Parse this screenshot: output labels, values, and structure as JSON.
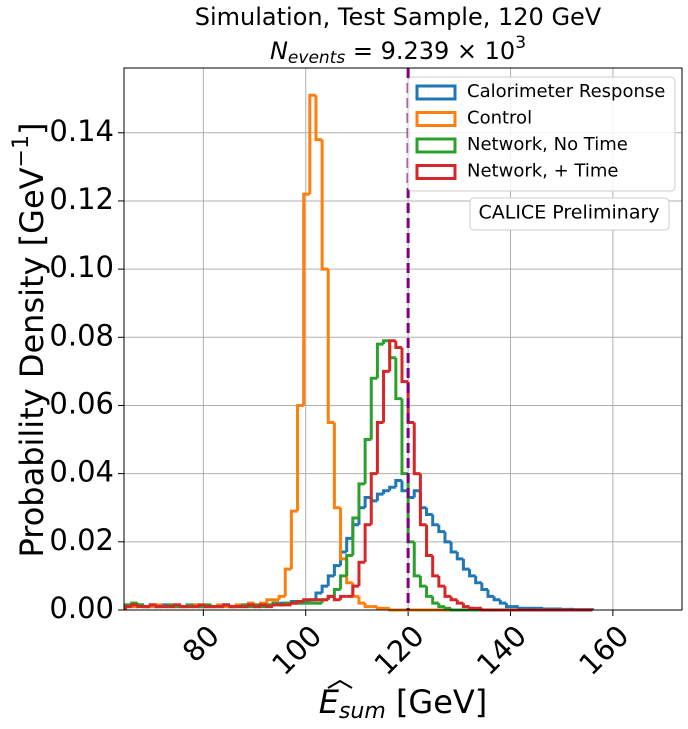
{
  "chart_data": {
    "type": "histogram",
    "title": "Simulation, Test Sample, 120 GeV",
    "subtitle": {
      "symbol": "N",
      "subscript": "events",
      "text": " = 9.239 × 10",
      "superscript": "3"
    },
    "x_label": {
      "symbol": "E",
      "subscript": "sum",
      "text": " [GeV]"
    },
    "y_label": {
      "text": "Probability Density [GeV",
      "superscript": "−1",
      "end": "]"
    },
    "annotation": "CALICE Preliminary",
    "xlim": [
      64.5,
      173.5
    ],
    "ylim": [
      0,
      0.159
    ],
    "xticks": [
      80,
      100,
      120,
      140,
      160
    ],
    "yticks": [
      {
        "value": 0,
        "label": "0.00"
      },
      0.02,
      0.04,
      0.06,
      0.08,
      {
        "value": 0.1,
        "label": "0.10"
      },
      0.12,
      0.14
    ],
    "grid": true,
    "legend": "upper right",
    "vline": {
      "x": 120,
      "color": "#800080"
    },
    "bins": [
      64.8,
      66,
      67.2,
      68.4,
      69.6,
      70.8,
      72,
      73.2,
      74.4,
      75.6,
      76.8,
      78,
      79.2,
      80.4,
      81.6,
      82.8,
      84,
      85.2,
      86.4,
      87.6,
      88.8,
      90,
      91.2,
      92.4,
      93.6,
      94.8,
      96,
      97.2,
      98.4,
      99.6,
      100.8,
      102,
      103.2,
      104.4,
      105.6,
      106.8,
      108,
      109.2,
      110.4,
      111.6,
      112.8,
      114,
      115.2,
      116.4,
      117.6,
      118.8,
      120,
      121.2,
      122.4,
      123.6,
      124.8,
      126,
      127.2,
      128.4,
      129.6,
      130.8,
      132,
      133.2,
      134.4,
      135.6,
      136.8,
      138,
      139.2,
      140.4,
      141.6,
      142.8,
      144,
      145.2,
      146.4,
      147.6,
      148.8,
      150,
      151.2,
      152.4,
      153.6,
      154.8,
      156
    ],
    "series": [
      {
        "name": "Calorimeter Response",
        "color": "#1f77b4",
        "values": [
          0.001,
          0.001,
          0.0015,
          0.001,
          0.001,
          0.001,
          0.0015,
          0.001,
          0.001,
          0.001,
          0.001,
          0.0015,
          0.001,
          0.001,
          0.001,
          0.001,
          0.0015,
          0.001,
          0.001,
          0.001,
          0.0015,
          0.001,
          0.0015,
          0.0015,
          0.002,
          0.002,
          0.002,
          0.0025,
          0.002,
          0.0025,
          0.003,
          0.005,
          0.007,
          0.01,
          0.013,
          0.017,
          0.021,
          0.025,
          0.03,
          0.033,
          0.032,
          0.034,
          0.035,
          0.036,
          0.038,
          0.035,
          0.033,
          0.035,
          0.03,
          0.028,
          0.025,
          0.023,
          0.02,
          0.017,
          0.015,
          0.012,
          0.01,
          0.008,
          0.006,
          0.004,
          0.003,
          0.002,
          0.001,
          0.001,
          0.0005,
          0.0005,
          0.0005,
          0.0005,
          0.0003,
          0.0003,
          0.0003,
          0.0002,
          0.0002,
          0.0001,
          0.0001,
          0.0001
        ]
      },
      {
        "name": "Control",
        "color": "#ff7f0e",
        "values": [
          0.0015,
          0.001,
          0.0015,
          0.001,
          0.001,
          0.0015,
          0.001,
          0.001,
          0.0015,
          0.001,
          0.001,
          0.0015,
          0.001,
          0.001,
          0.001,
          0.0015,
          0.001,
          0.001,
          0.0015,
          0.001,
          0.002,
          0.0015,
          0.002,
          0.003,
          0.003,
          0.004,
          0.012,
          0.029,
          0.06,
          0.122,
          0.151,
          0.138,
          0.1,
          0.055,
          0.03,
          0.015,
          0.008,
          0.004,
          0.002,
          0.001,
          0.001,
          0.0005,
          0.0005,
          0,
          0,
          0,
          0,
          0,
          0,
          0,
          0,
          0,
          0,
          0,
          0,
          0,
          0,
          0,
          0,
          0,
          0,
          0,
          0,
          0,
          0,
          0,
          0,
          0,
          0,
          0,
          0,
          0,
          0,
          0,
          0,
          0
        ]
      },
      {
        "name": "Network, No Time",
        "color": "#2ca02c",
        "values": [
          0.0015,
          0.002,
          0.0015,
          0.001,
          0.0015,
          0.001,
          0.001,
          0.0015,
          0.001,
          0.001,
          0.0015,
          0.001,
          0.001,
          0.0015,
          0.001,
          0.001,
          0.0015,
          0.001,
          0.001,
          0.0015,
          0.001,
          0.0015,
          0.001,
          0.0015,
          0.002,
          0.0015,
          0.002,
          0.002,
          0.002,
          0.002,
          0.002,
          0.002,
          0.003,
          0.004,
          0.006,
          0.01,
          0.016,
          0.027,
          0.037,
          0.05,
          0.068,
          0.078,
          0.079,
          0.074,
          0.062,
          0.04,
          0.02,
          0.01,
          0.007,
          0.004,
          0.002,
          0.001,
          0.0005,
          0,
          0,
          0,
          0,
          0,
          0,
          0,
          0,
          0,
          0,
          0,
          0,
          0,
          0,
          0,
          0,
          0,
          0,
          0,
          0,
          0,
          0,
          0
        ]
      },
      {
        "name": "Network, + Time",
        "color": "#d62728",
        "values": [
          0.001,
          0.0015,
          0.001,
          0.001,
          0.0015,
          0.001,
          0.001,
          0.001,
          0.0015,
          0.001,
          0.001,
          0.001,
          0.0015,
          0.001,
          0.001,
          0.001,
          0.0015,
          0.001,
          0.001,
          0.001,
          0.0015,
          0.001,
          0.0015,
          0.001,
          0.0015,
          0.0015,
          0.0015,
          0.002,
          0.0025,
          0.003,
          0.003,
          0.003,
          0.003,
          0.004,
          0.003,
          0.004,
          0.004,
          0.007,
          0.014,
          0.025,
          0.04,
          0.055,
          0.07,
          0.079,
          0.077,
          0.067,
          0.055,
          0.04,
          0.025,
          0.016,
          0.01,
          0.007,
          0.004,
          0.003,
          0.002,
          0.001,
          0.0005,
          0.0005,
          0,
          0,
          0,
          0,
          0,
          0,
          0,
          0,
          0,
          0,
          0,
          0,
          0,
          0,
          0,
          0,
          0,
          0
        ]
      }
    ]
  }
}
